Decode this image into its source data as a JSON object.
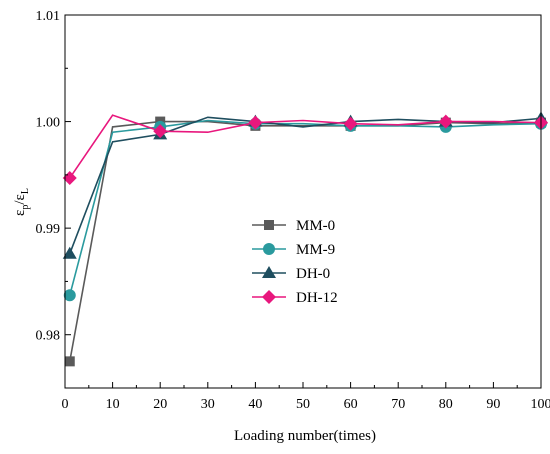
{
  "chart_data": {
    "type": "line",
    "xlabel": "Loading number(times)",
    "ylabel": {
      "base": "ε",
      "sub1": "p",
      "sep": "/",
      "base2": "ε",
      "sub2": "L"
    },
    "xlim": [
      0,
      100
    ],
    "ylim": [
      0.975,
      1.01
    ],
    "xticks": [
      "0",
      "10",
      "20",
      "30",
      "40",
      "50",
      "60",
      "70",
      "80",
      "90",
      "100"
    ],
    "yticks": [
      "0.98",
      "0.99",
      "1.00",
      "1.01"
    ],
    "grid": false,
    "legend_position": "center",
    "x": [
      1,
      10,
      20,
      30,
      40,
      50,
      60,
      70,
      80,
      90,
      100
    ],
    "series": [
      {
        "name": "MM-0",
        "color": "#5a5a5a",
        "marker": "square",
        "values": [
          0.9775,
          0.9995,
          1.0,
          1.0,
          0.9996,
          0.9996,
          0.9996,
          0.9996,
          0.9999,
          0.9998,
          0.9999
        ],
        "marker_indices": [
          0,
          2,
          4,
          6,
          8,
          10
        ]
      },
      {
        "name": "MM-9",
        "color": "#2a9a9e",
        "marker": "circle",
        "values": [
          0.9837,
          0.999,
          0.9995,
          1.0001,
          0.9998,
          0.9998,
          0.9996,
          0.9996,
          0.9995,
          0.9997,
          0.9998
        ],
        "marker_indices": [
          0,
          2,
          4,
          6,
          8,
          10
        ]
      },
      {
        "name": "DH-0",
        "color": "#1f4e5f",
        "marker": "triangle",
        "values": [
          0.9876,
          0.9981,
          0.9988,
          1.0004,
          1.0,
          0.9995,
          1.0,
          1.0002,
          1.0,
          0.9999,
          1.0003
        ],
        "marker_indices": [
          0,
          2,
          4,
          6,
          8,
          10
        ]
      },
      {
        "name": "DH-12",
        "color": "#e8177d",
        "marker": "diamond",
        "values": [
          0.9947,
          1.0006,
          0.9991,
          0.999,
          0.9999,
          1.0001,
          0.9998,
          0.9997,
          1.0,
          1.0,
          0.9999
        ],
        "marker_indices": [
          0,
          2,
          4,
          6,
          8,
          10
        ]
      }
    ]
  }
}
